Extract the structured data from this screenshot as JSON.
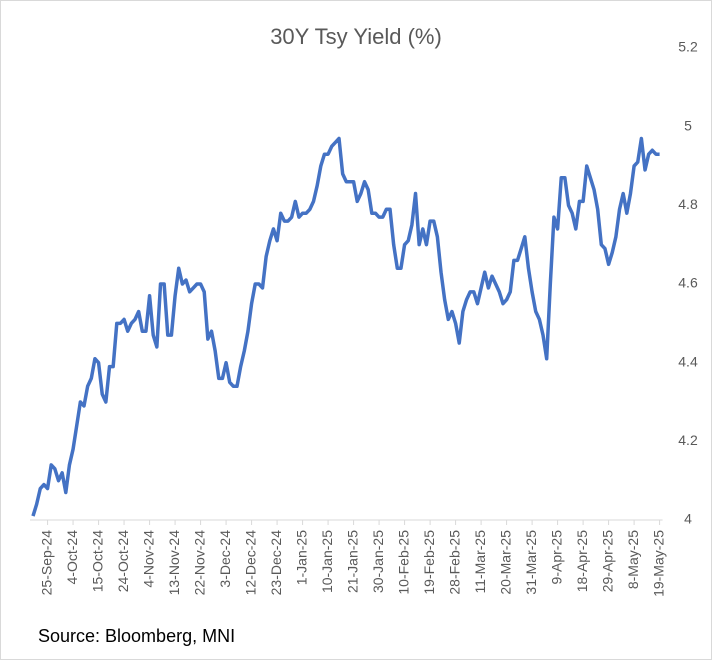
{
  "chart_data": {
    "type": "line",
    "title": "30Y Tsy Yield (%)",
    "source": "Source: Bloomberg, MNI",
    "categories": [
      null,
      null,
      null,
      null,
      "25-Sep-24",
      null,
      null,
      null,
      null,
      null,
      null,
      "4-Oct-24",
      null,
      null,
      null,
      null,
      null,
      null,
      "15-Oct-24",
      null,
      null,
      null,
      null,
      null,
      null,
      "24-Oct-24",
      null,
      null,
      null,
      null,
      null,
      null,
      "4-Nov-24",
      null,
      null,
      null,
      null,
      null,
      null,
      "13-Nov-24",
      null,
      null,
      null,
      null,
      null,
      null,
      "22-Nov-24",
      null,
      null,
      null,
      null,
      null,
      null,
      "3-Dec-24",
      null,
      null,
      null,
      null,
      null,
      null,
      "12-Dec-24",
      null,
      null,
      null,
      null,
      null,
      null,
      "23-Dec-24",
      null,
      null,
      null,
      null,
      null,
      null,
      "1-Jan-25",
      null,
      null,
      null,
      null,
      null,
      null,
      "10-Jan-25",
      null,
      null,
      null,
      null,
      null,
      null,
      "21-Jan-25",
      null,
      null,
      null,
      null,
      null,
      null,
      "30-Jan-25",
      null,
      null,
      null,
      null,
      null,
      null,
      "10-Feb-25",
      null,
      null,
      null,
      null,
      null,
      null,
      "19-Feb-25",
      null,
      null,
      null,
      null,
      null,
      null,
      "28-Feb-25",
      null,
      null,
      null,
      null,
      null,
      null,
      "11-Mar-25",
      null,
      null,
      null,
      null,
      null,
      null,
      "20-Mar-25",
      null,
      null,
      null,
      null,
      null,
      null,
      "31-Mar-25",
      null,
      null,
      null,
      null,
      null,
      null,
      "9-Apr-25",
      null,
      null,
      null,
      null,
      null,
      null,
      "18-Apr-25",
      null,
      null,
      null,
      null,
      null,
      null,
      "29-Apr-25",
      null,
      null,
      null,
      null,
      null,
      null,
      "8-May-25",
      null,
      null,
      null,
      null,
      null,
      null,
      "19-May-25"
    ],
    "series": [
      {
        "name": "30Y Tsy Yield",
        "color": "#4472c4",
        "values": [
          4.01,
          4.04,
          4.08,
          4.09,
          4.08,
          4.14,
          4.13,
          4.1,
          4.12,
          4.07,
          4.14,
          4.18,
          4.24,
          4.3,
          4.29,
          4.34,
          4.36,
          4.41,
          4.4,
          4.32,
          4.3,
          4.39,
          4.39,
          4.5,
          4.5,
          4.51,
          4.48,
          4.5,
          4.51,
          4.53,
          4.48,
          4.48,
          4.57,
          4.47,
          4.44,
          4.6,
          4.6,
          4.47,
          4.47,
          4.57,
          4.64,
          4.6,
          4.61,
          4.58,
          4.59,
          4.6,
          4.6,
          4.58,
          4.46,
          4.48,
          4.43,
          4.36,
          4.36,
          4.4,
          4.35,
          4.34,
          4.34,
          4.39,
          4.43,
          4.48,
          4.55,
          4.6,
          4.6,
          4.59,
          4.67,
          4.71,
          4.74,
          4.71,
          4.78,
          4.76,
          4.76,
          4.77,
          4.81,
          4.77,
          4.78,
          4.78,
          4.79,
          4.81,
          4.85,
          4.9,
          4.93,
          4.93,
          4.95,
          4.96,
          4.97,
          4.88,
          4.86,
          4.86,
          4.86,
          4.81,
          4.83,
          4.86,
          4.84,
          4.78,
          4.78,
          4.77,
          4.77,
          4.79,
          4.79,
          4.7,
          4.64,
          4.64,
          4.7,
          4.71,
          4.75,
          4.83,
          4.7,
          4.74,
          4.7,
          4.76,
          4.76,
          4.72,
          4.63,
          4.56,
          4.51,
          4.53,
          4.5,
          4.45,
          4.53,
          4.56,
          4.58,
          4.58,
          4.55,
          4.59,
          4.63,
          4.59,
          4.62,
          4.6,
          4.58,
          4.55,
          4.56,
          4.58,
          4.66,
          4.66,
          4.69,
          4.72,
          4.64,
          4.58,
          4.53,
          4.51,
          4.47,
          4.41,
          4.6,
          4.77,
          4.74,
          4.87,
          4.87,
          4.8,
          4.78,
          4.74,
          4.81,
          4.81,
          4.9,
          4.87,
          4.84,
          4.79,
          4.7,
          4.69,
          4.65,
          4.68,
          4.72,
          4.79,
          4.83,
          4.78,
          4.83,
          4.9,
          4.91,
          4.97,
          4.89,
          4.93,
          4.94,
          4.93,
          4.93
        ]
      }
    ],
    "ylim": [
      4,
      5.2
    ],
    "yticks": [
      4,
      4.2,
      4.4,
      4.6,
      4.8,
      5,
      5.2
    ]
  }
}
